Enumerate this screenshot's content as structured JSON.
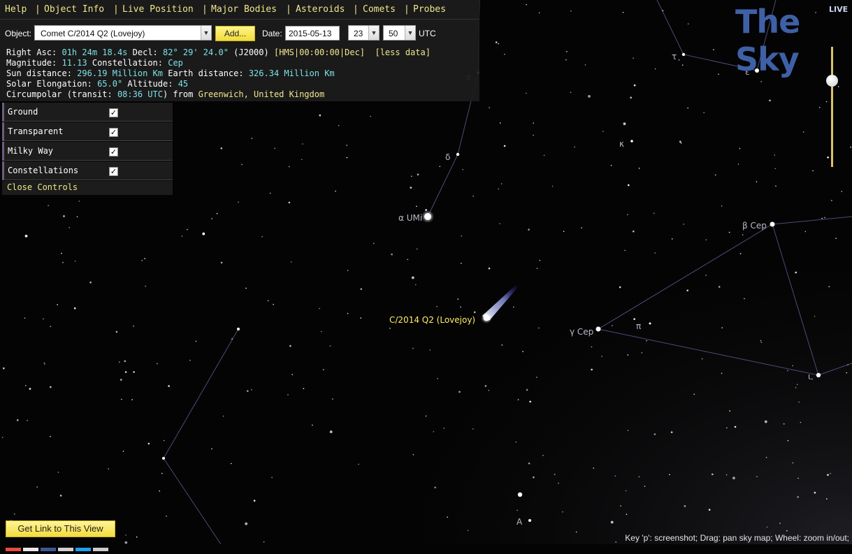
{
  "menu": {
    "items": [
      "Help",
      "Object Info",
      "Live Position",
      "Major Bodies",
      "Asteroids",
      "Comets",
      "Probes"
    ],
    "separator": "|"
  },
  "form": {
    "object_label": "Object:",
    "object_value": "Comet C/2014 Q2 (Lovejoy)",
    "add_label": "Add...",
    "date_label": "Date:",
    "date_value": "2015-05-13",
    "hour_value": "23",
    "minute_value": "50",
    "utc_label": "UTC"
  },
  "info": {
    "ra_label": "Right Asc:",
    "ra_value": "01h 24m 18.4s",
    "decl_label": "Decl:",
    "decl_value": "82° 29' 24.0\"",
    "epoch": "(J2000)",
    "format_toggle": "[HMS|00:00:00|Dec]",
    "less_data": "[less data]",
    "mag_label": "Magnitude:",
    "mag_value": "11.13",
    "const_label": "Constellation:",
    "const_value": "Cep",
    "sun_label": "Sun distance:",
    "sun_value": "296.19 Million Km",
    "earth_label": "Earth distance:",
    "earth_value": "326.34 Million Km",
    "elong_label": "Solar Elongation:",
    "elong_value": "65.0°",
    "alt_label": "Altitude:",
    "alt_value": "45",
    "circ_label": "Circumpolar (transit:",
    "circ_time": "08:36 UTC",
    "circ_from": ") from",
    "circ_place": "Greenwich, United Kingdom"
  },
  "controls": {
    "items": [
      {
        "label": "Ground",
        "checked": true
      },
      {
        "label": "Transparent",
        "checked": true
      },
      {
        "label": "Milky Way",
        "checked": true
      },
      {
        "label": "Constellations",
        "checked": true
      }
    ],
    "close_label": "Close Controls"
  },
  "logo": {
    "text": "The Sky",
    "badge": "LIVE"
  },
  "sky": {
    "labels": {
      "epsilon_umi": "ε",
      "delta_umi": "δ",
      "alpha_umi": "α UMi",
      "tau_cep": "τ",
      "epsilon_cep": "ε",
      "kappa_cep": "κ",
      "beta_cep": "β Cep",
      "gamma_cep": "γ Cep",
      "pi_cep": "π",
      "iota_cep": "ι",
      "a_star": "A"
    },
    "comet_label": "C/2014 Q2 (Lovejoy)"
  },
  "footer": {
    "get_link_label": "Get Link to This View",
    "hint": "Key 'p': screenshot; Drag: pan sky map; Wheel: zoom in/out;"
  },
  "colors": {
    "menu_text": "#f0e68c",
    "value_text": "#7ee0e6",
    "logo_blue": "#3e60a6",
    "comet_label": "#ffee66",
    "constellation_line": "#4b4c78"
  }
}
